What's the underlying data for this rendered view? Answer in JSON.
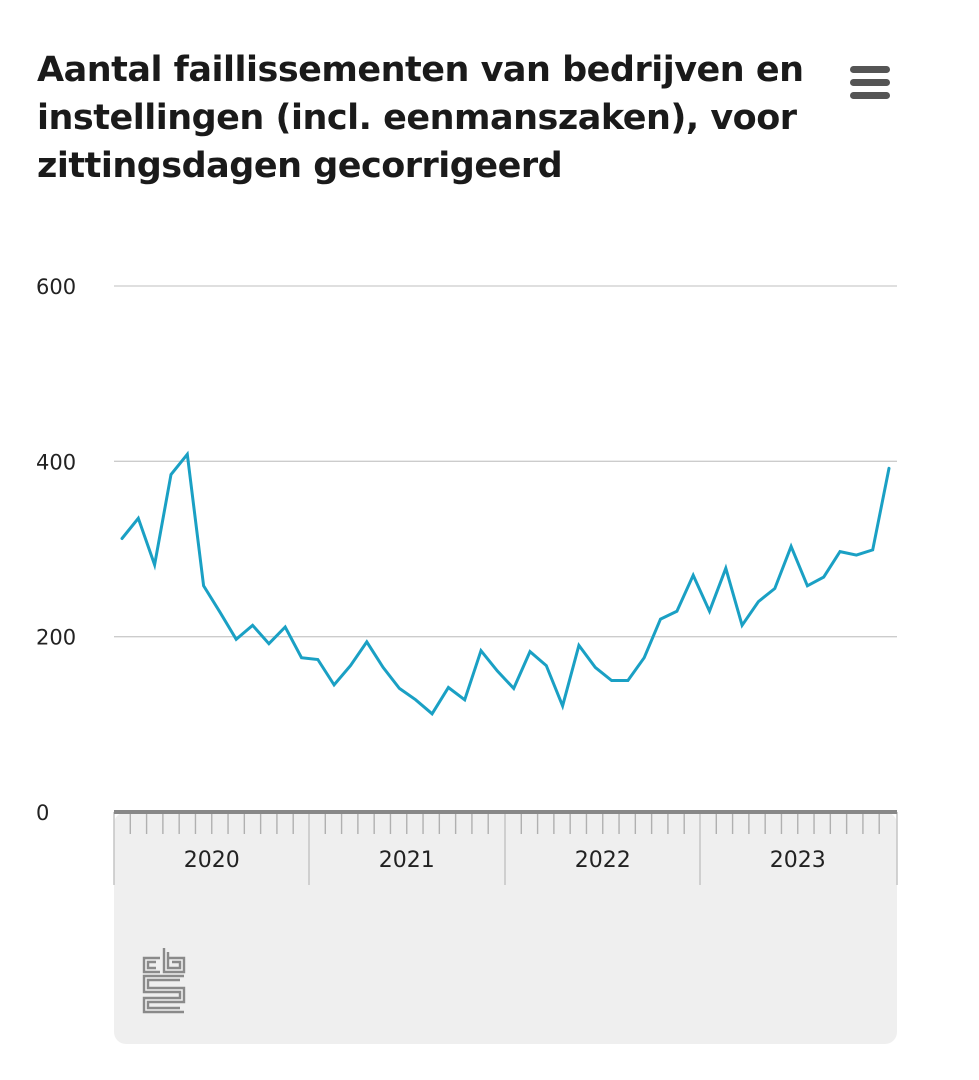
{
  "header": {
    "title": "Aantal faillissementen van bedrijven en instellingen (incl. eenmanszaken), voor zittingsdagen gecorrigeerd",
    "menu_icon": "hamburger-menu-icon"
  },
  "branding": {
    "logo": "cbs"
  },
  "colors": {
    "series": "#1aa0c4",
    "grid": "#cccccc",
    "axis": "#888888",
    "navigator": "#efefef"
  },
  "chart_data": {
    "type": "line",
    "title": "Aantal faillissementen van bedrijven en instellingen (incl. eenmanszaken), voor zittingsdagen gecorrigeerd",
    "xlabel": "",
    "ylabel": "",
    "ylim": [
      0,
      600
    ],
    "yticks": [
      "0",
      "200",
      "400",
      "600"
    ],
    "year_labels": [
      "2020",
      "2021",
      "2022",
      "2023"
    ],
    "grid": true,
    "start": "2019-12",
    "series": [
      {
        "name": "Aantal faillissementen",
        "values": [
          312,
          335,
          282,
          385,
          408,
          258,
          228,
          197,
          213,
          192,
          211,
          176,
          174,
          145,
          167,
          194,
          165,
          141,
          128,
          112,
          142,
          128,
          184,
          161,
          141,
          183,
          167,
          121,
          190,
          165,
          150,
          150,
          176,
          220,
          229,
          270,
          229,
          278,
          213,
          240,
          255,
          303,
          258,
          268,
          297,
          293,
          299,
          392
        ]
      }
    ]
  }
}
